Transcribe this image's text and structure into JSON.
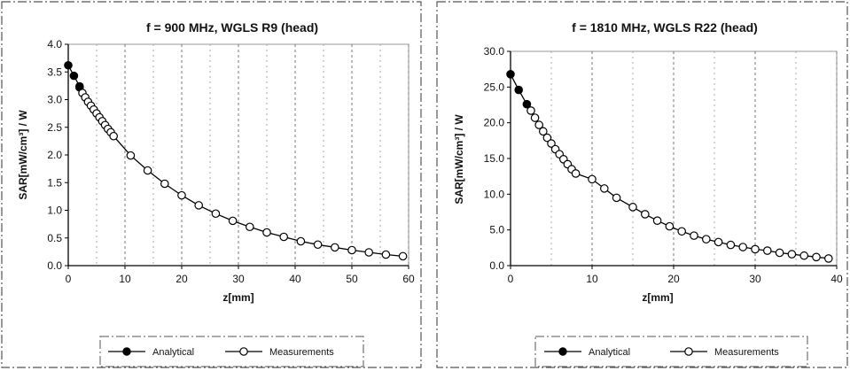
{
  "chart_data": [
    {
      "type": "line",
      "title": "f = 900 MHz, WGLS R9 (head)",
      "xlabel": "z[mm]",
      "ylabel": "SAR[mW/cm³] / W",
      "xlim": [
        0,
        60
      ],
      "ylim": [
        0,
        4.0
      ],
      "x_ticks": [
        "0",
        "10",
        "20",
        "30",
        "40",
        "50",
        "60"
      ],
      "y_ticks": [
        "0.0",
        "0.5",
        "1.0",
        "1.5",
        "2.0",
        "2.5",
        "3.0",
        "3.5",
        "4.0"
      ],
      "grid": "vertical dashed",
      "legend_position": "bottom",
      "series": [
        {
          "name": "Analytical",
          "marker": "filled-circle",
          "x": [
            0,
            1,
            2
          ],
          "y": [
            3.62,
            3.43,
            3.24
          ]
        },
        {
          "name": "Measurements",
          "marker": "open-circle",
          "x": [
            2,
            2.5,
            3,
            3.5,
            4,
            4.5,
            5,
            5.5,
            6,
            6.5,
            7,
            7.5,
            8,
            11,
            14,
            17,
            20,
            23,
            26,
            29,
            32,
            35,
            38,
            41,
            44,
            47,
            50,
            53,
            56,
            59
          ],
          "y": [
            3.22,
            3.12,
            3.04,
            2.96,
            2.89,
            2.82,
            2.75,
            2.68,
            2.61,
            2.54,
            2.47,
            2.41,
            2.34,
            1.99,
            1.72,
            1.48,
            1.27,
            1.09,
            0.94,
            0.81,
            0.7,
            0.6,
            0.52,
            0.44,
            0.38,
            0.33,
            0.28,
            0.24,
            0.2,
            0.17
          ]
        }
      ]
    },
    {
      "type": "line",
      "title": "f = 1810 MHz, WGLS R22 (head)",
      "xlabel": "z[mm]",
      "ylabel": "SAR[mW/cm³] / W",
      "xlim": [
        0,
        40
      ],
      "ylim": [
        0,
        30.0
      ],
      "x_ticks": [
        "0",
        "10",
        "20",
        "30",
        "40"
      ],
      "y_ticks": [
        "0.0",
        "5.0",
        "10.0",
        "15.0",
        "20.0",
        "25.0",
        "30.0"
      ],
      "grid": "vertical dashed",
      "legend_position": "bottom",
      "series": [
        {
          "name": "Analytical",
          "marker": "filled-circle",
          "x": [
            0,
            1,
            2
          ],
          "y": [
            26.8,
            24.6,
            22.6
          ]
        },
        {
          "name": "Measurements",
          "marker": "open-circle",
          "x": [
            2.5,
            3,
            3.5,
            4,
            4.5,
            5,
            5.5,
            6,
            6.5,
            7,
            7.5,
            8,
            10,
            11.5,
            13,
            15,
            16.5,
            18,
            19.5,
            21,
            22.5,
            24,
            25.5,
            27,
            28.5,
            30,
            31.5,
            33,
            34.5,
            36,
            37.5,
            39
          ],
          "y": [
            21.7,
            20.7,
            19.7,
            18.8,
            17.9,
            17.1,
            16.3,
            15.6,
            14.9,
            14.2,
            13.5,
            12.9,
            12.1,
            10.8,
            9.5,
            8.2,
            7.2,
            6.3,
            5.5,
            4.8,
            4.2,
            3.7,
            3.3,
            2.9,
            2.6,
            2.3,
            2.1,
            1.8,
            1.6,
            1.4,
            1.2,
            1.0
          ]
        }
      ]
    }
  ]
}
